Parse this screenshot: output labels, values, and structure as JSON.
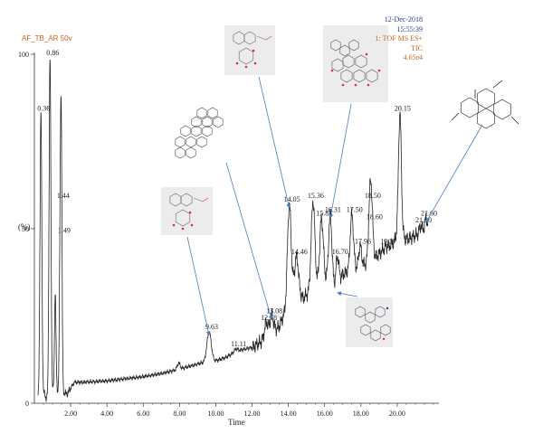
{
  "header": {
    "sample": "AF_TB_AR 50v",
    "date": "12-Dec-2018",
    "time": "15:55:39",
    "scan": "1: TOF MS ES+",
    "trace": "TIC",
    "intensity": "4.65e4"
  },
  "colors": {
    "trace": "#222222",
    "orange": "#c8641e",
    "blue_text": "#2a3c8c",
    "arrow": "#4a7fc0"
  },
  "chart_data": {
    "type": "line",
    "xlabel": "Time",
    "ylabel": "(%)",
    "xlim": [
      0,
      22.3
    ],
    "ylim": [
      0,
      100
    ],
    "x_ticks": [
      "2.00",
      "4.00",
      "6.00",
      "8.00",
      "10.00",
      "12.00",
      "14.00",
      "16.00",
      "18.00",
      "20.00"
    ],
    "x_tick_values": [
      2,
      4,
      6,
      8,
      10,
      12,
      14,
      16,
      18,
      20
    ],
    "y_ticks": [
      "0",
      "50",
      "100"
    ],
    "y_tick_values": [
      0,
      50,
      100
    ],
    "baseline": [
      [
        0.2,
        1
      ],
      [
        0.3,
        5
      ],
      [
        0.5,
        3
      ],
      [
        0.65,
        1.5
      ],
      [
        0.8,
        2
      ],
      [
        1.0,
        4
      ],
      [
        1.15,
        3
      ],
      [
        1.6,
        3
      ],
      [
        1.8,
        2.6
      ],
      [
        2.2,
        6
      ],
      [
        2.6,
        6
      ],
      [
        3.0,
        6.1
      ],
      [
        4.0,
        6.4
      ],
      [
        5.0,
        7
      ],
      [
        6.0,
        7.6
      ],
      [
        7.0,
        8.5
      ],
      [
        7.8,
        9.5
      ],
      [
        8.5,
        10.5
      ],
      [
        9.2,
        11.5
      ],
      [
        9.9,
        12
      ],
      [
        10.5,
        13
      ],
      [
        11.2,
        15
      ],
      [
        12.0,
        16
      ],
      [
        12.5,
        17.5
      ],
      [
        13.0,
        19.5
      ],
      [
        13.5,
        22
      ],
      [
        13.9,
        27
      ],
      [
        14.3,
        33
      ],
      [
        14.8,
        30
      ],
      [
        15.2,
        32
      ],
      [
        15.7,
        34
      ],
      [
        16.1,
        35
      ],
      [
        16.6,
        33
      ],
      [
        17.0,
        37
      ],
      [
        17.4,
        38
      ],
      [
        17.9,
        39
      ],
      [
        18.3,
        40
      ],
      [
        18.8,
        42
      ],
      [
        19.3,
        44
      ],
      [
        19.8,
        46
      ],
      [
        20.0,
        48
      ],
      [
        20.5,
        47
      ],
      [
        21.0,
        48
      ],
      [
        21.5,
        49
      ]
    ],
    "peaks": [
      {
        "rt": 0.36,
        "value": 83,
        "label": "0.36",
        "w": 0.05
      },
      {
        "rt": 0.86,
        "value": 99,
        "label": "0.86",
        "w": 0.05
      },
      {
        "rt": 1.15,
        "value": 32,
        "label": "",
        "w": 0.04
      },
      {
        "rt": 1.44,
        "value": 58,
        "label": "1.44",
        "w": 0.05
      },
      {
        "rt": 1.49,
        "value": 48,
        "label": "1.49",
        "w": 0.04
      },
      {
        "rt": 7.95,
        "value": 11.5,
        "label": "",
        "w": 0.08
      },
      {
        "rt": 9.63,
        "value": 20.5,
        "label": "9.63",
        "w": 0.12
      },
      {
        "rt": 11.11,
        "value": 15.5,
        "label": "11.11",
        "w": 0.1
      },
      {
        "rt": 12.78,
        "value": 23,
        "label": "12.78",
        "w": 0.1
      },
      {
        "rt": 13.08,
        "value": 25,
        "label": "13.08",
        "w": 0.1
      },
      {
        "rt": 14.05,
        "value": 57,
        "label": "14.05",
        "w": 0.1
      },
      {
        "rt": 14.46,
        "value": 42,
        "label": "14.46",
        "w": 0.1
      },
      {
        "rt": 15.36,
        "value": 58,
        "label": "15.36",
        "w": 0.1
      },
      {
        "rt": 15.83,
        "value": 53,
        "label": "15.83",
        "w": 0.1
      },
      {
        "rt": 16.31,
        "value": 54,
        "label": "16.31",
        "w": 0.09
      },
      {
        "rt": 16.7,
        "value": 42,
        "label": "16.70",
        "w": 0.08
      },
      {
        "rt": 17.5,
        "value": 54,
        "label": "17.50",
        "w": 0.09
      },
      {
        "rt": 17.96,
        "value": 45,
        "label": "17.96",
        "w": 0.08
      },
      {
        "rt": 18.5,
        "value": 58,
        "label": "18.50",
        "w": 0.08
      },
      {
        "rt": 18.6,
        "value": 52,
        "label": "18.60",
        "w": 0.07
      },
      {
        "rt": 19.37,
        "value": 45,
        "label": "19.37",
        "w": 0.09
      },
      {
        "rt": 20.15,
        "value": 83,
        "label": "20.15",
        "w": 0.08
      },
      {
        "rt": 21.3,
        "value": 51,
        "label": "21.30",
        "w": 0.08
      },
      {
        "rt": 21.6,
        "value": 53,
        "label": "21.60",
        "w": 0.08
      }
    ]
  },
  "structures": [
    {
      "name": "structure-9-63",
      "target_rt": 9.63,
      "type": "ring",
      "boxed": true
    },
    {
      "name": "structure-13-08",
      "target_rt": 13.08,
      "type": "triterpene",
      "boxed": false
    },
    {
      "name": "structure-14-05",
      "target_rt": 14.05,
      "type": "ring",
      "boxed": true
    },
    {
      "name": "structure-16-31",
      "target_rt": 16.31,
      "type": "glycoside",
      "boxed": true
    },
    {
      "name": "structure-16-70",
      "target_rt": 16.7,
      "type": "alkaloid",
      "boxed": true
    },
    {
      "name": "structure-21-60",
      "target_rt": 21.6,
      "type": "aporphine",
      "boxed": false
    }
  ]
}
